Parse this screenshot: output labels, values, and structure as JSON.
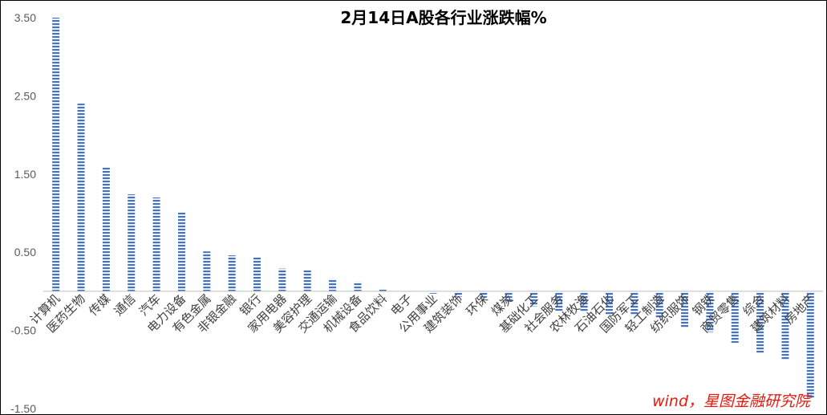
{
  "chart_data": {
    "type": "bar",
    "title": "2月14日A股各行业涨跌幅%",
    "xlabel": "",
    "ylabel": "",
    "ylim": [
      -1.5,
      3.5
    ],
    "yticks": [
      3.5,
      2.5,
      1.5,
      0.5,
      -0.5,
      -1.5
    ],
    "grid": false,
    "legend": "none",
    "bar_color": "#4472C4",
    "bar_pattern": "horizontal-stripes",
    "categories": [
      "计算机",
      "医药生物",
      "传媒",
      "通信",
      "汽车",
      "电力设备",
      "有色金属",
      "非银金融",
      "银行",
      "家用电器",
      "美容护理",
      "交通运输",
      "机械设备",
      "食品饮料",
      "电子",
      "公用事业",
      "建筑装饰",
      "环保",
      "煤炭",
      "基础化工",
      "社会服务",
      "农林牧渔",
      "石油石化",
      "国防军工",
      "轻工制造",
      "纺织服饰",
      "钢铁",
      "商贸零售",
      "综合",
      "建筑材料",
      "房地产"
    ],
    "values": [
      3.5,
      2.4,
      1.59,
      1.24,
      1.2,
      1.01,
      0.51,
      0.46,
      0.44,
      0.29,
      0.27,
      0.16,
      0.12,
      0.02,
      -0.02,
      -0.03,
      -0.07,
      -0.08,
      -0.14,
      -0.19,
      -0.25,
      -0.26,
      -0.3,
      -0.31,
      -0.35,
      -0.47,
      -0.52,
      -0.66,
      -0.8,
      -0.87,
      -1.37
    ]
  },
  "source_note": "wind，星图金融研究院"
}
